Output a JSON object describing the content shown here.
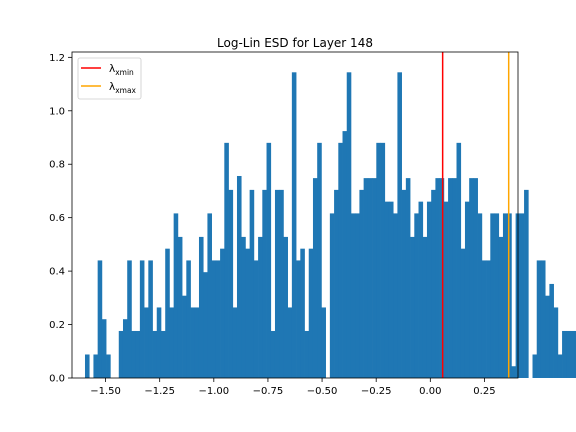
{
  "chart_data": {
    "type": "bar",
    "title": "Log-Lin ESD for Layer 148",
    "xlabel": "",
    "ylabel": "",
    "xlim": [
      -1.655,
      0.405
    ],
    "ylim": [
      0.0,
      1.22
    ],
    "xticks": [
      -1.5,
      -1.25,
      -1.0,
      -0.75,
      -0.5,
      -0.25,
      0.0,
      0.25
    ],
    "xtick_labels": [
      "−1.50",
      "−1.25",
      "−1.00",
      "−0.75",
      "−0.50",
      "−0.25",
      "0.00",
      "0.25"
    ],
    "yticks": [
      0.0,
      0.2,
      0.4,
      0.6,
      0.8,
      1.0,
      1.2
    ],
    "ytick_labels": [
      "0.0",
      "0.2",
      "0.4",
      "0.6",
      "0.8",
      "1.0",
      "1.2"
    ],
    "bar_color": "#1f77b4",
    "bin_start": -1.595,
    "bin_width": 0.0195,
    "values": [
      0.088,
      0.0,
      0.088,
      0.44,
      0.22,
      0.088,
      0.0,
      0.0,
      0.176,
      0.22,
      0.44,
      0.176,
      0.176,
      0.44,
      0.264,
      0.44,
      0.176,
      0.264,
      0.176,
      0.484,
      0.264,
      0.616,
      0.528,
      0.308,
      0.44,
      0.264,
      0.264,
      0.528,
      0.396,
      0.616,
      0.44,
      0.44,
      0.484,
      0.88,
      0.704,
      0.264,
      0.756,
      0.528,
      0.484,
      0.704,
      0.44,
      0.528,
      0.704,
      0.88,
      0.176,
      0.704,
      0.704,
      0.528,
      0.264,
      1.144,
      0.44,
      0.484,
      0.176,
      0.484,
      0.748,
      0.88,
      0.264,
      0.0,
      0.616,
      0.704,
      0.88,
      0.924,
      1.144,
      0.616,
      0.616,
      0.704,
      0.748,
      0.748,
      0.748,
      0.88,
      0.88,
      0.66,
      0.66,
      0.616,
      1.144,
      0.704,
      0.748,
      0.528,
      0.616,
      0.66,
      0.528,
      0.66,
      0.704,
      0.748,
      0.748,
      0.66,
      0.748,
      0.748,
      0.88,
      0.484,
      0.66,
      0.748,
      0.748,
      0.616,
      0.44,
      0.44,
      0.616,
      0.616,
      0.528,
      0.616,
      0.616,
      0.044,
      0.616,
      0.616,
      0.704,
      0.0,
      0.088,
      0.44,
      0.44,
      0.308,
      0.352,
      0.264,
      0.088,
      0.176,
      0.176,
      0.176,
      0.176,
      0.088,
      0.088,
      0.176
    ],
    "vlines": [
      {
        "name": "λxmin",
        "base": "λ",
        "sub": "xmin",
        "x": 0.057,
        "color": "#ff0000"
      },
      {
        "name": "λxmax",
        "base": "λ",
        "sub": "xmax",
        "x": 0.362,
        "color": "#ffa500"
      }
    ],
    "legend_position": "upper-left"
  }
}
